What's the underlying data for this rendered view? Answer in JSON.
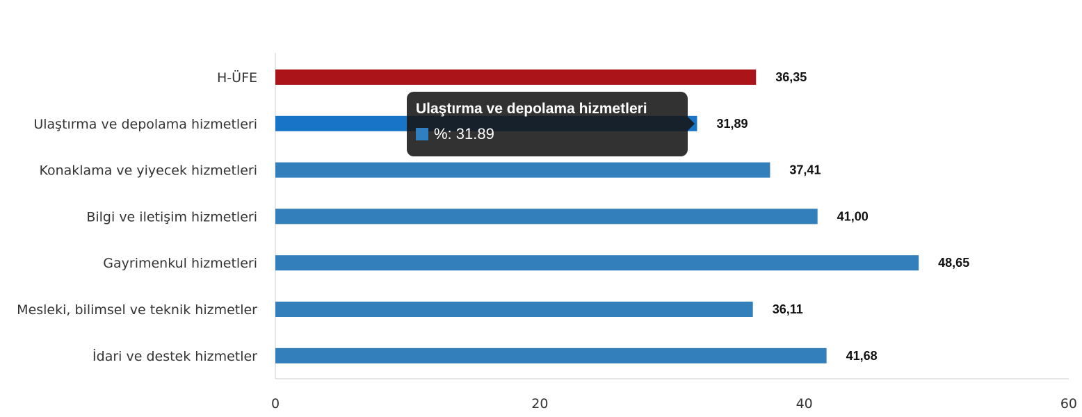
{
  "chart_data": {
    "type": "bar",
    "orientation": "horizontal",
    "categories": [
      "H-ÜFE",
      "Ulaştırma ve depolama hizmetleri",
      "Konaklama ve yiyecek hizmetleri",
      "Bilgi ve iletişim hizmetleri",
      "Gayrimenkul hizmetleri",
      "Mesleki, bilimsel ve teknik hizmetler",
      "İdari ve destek hizmetler"
    ],
    "values": [
      36.35,
      31.89,
      37.41,
      41.0,
      48.65,
      36.11,
      41.68
    ],
    "value_labels": [
      "36,35",
      "31,89",
      "37,41",
      "41,00",
      "48,65",
      "36,11",
      "41,68"
    ],
    "bar_colors": [
      "#ab1519",
      "#1874c6",
      "#327fbb",
      "#327fbb",
      "#327fbb",
      "#327fbb",
      "#327fbb"
    ],
    "xlim": [
      0,
      60
    ],
    "x_ticks": [
      0,
      20,
      40,
      60
    ],
    "grid": false,
    "legend": "none"
  },
  "tooltip": {
    "title": "Ulaştırma ve depolama hizmetleri",
    "value_text": "%: 31.89",
    "swatch_color": "#2f7fc1"
  }
}
